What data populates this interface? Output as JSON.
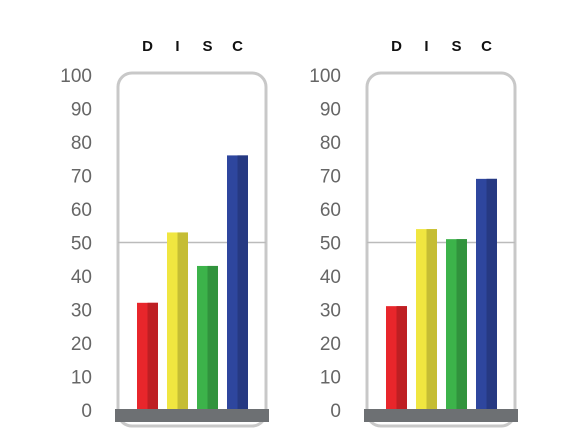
{
  "colors": {
    "frame": "#c8c8c8",
    "base": "#6d7073",
    "midline": "#bbbbbb",
    "D": "#e8262b",
    "I": "#f0e640",
    "S": "#3cb34a",
    "C": "#2e469e"
  },
  "chart_data": [
    {
      "type": "bar",
      "categories": [
        "D",
        "I",
        "S",
        "C"
      ],
      "values": [
        32,
        53,
        43,
        76
      ],
      "ylim": [
        0,
        100
      ],
      "yticks": [
        0,
        10,
        20,
        30,
        40,
        50,
        60,
        70,
        80,
        90,
        100
      ],
      "reference_line": 50,
      "grid": false
    },
    {
      "type": "bar",
      "categories": [
        "D",
        "I",
        "S",
        "C"
      ],
      "values": [
        31,
        54,
        51,
        69
      ],
      "ylim": [
        0,
        100
      ],
      "yticks": [
        0,
        10,
        20,
        30,
        40,
        50,
        60,
        70,
        80,
        90,
        100
      ],
      "reference_line": 50,
      "grid": false
    }
  ]
}
